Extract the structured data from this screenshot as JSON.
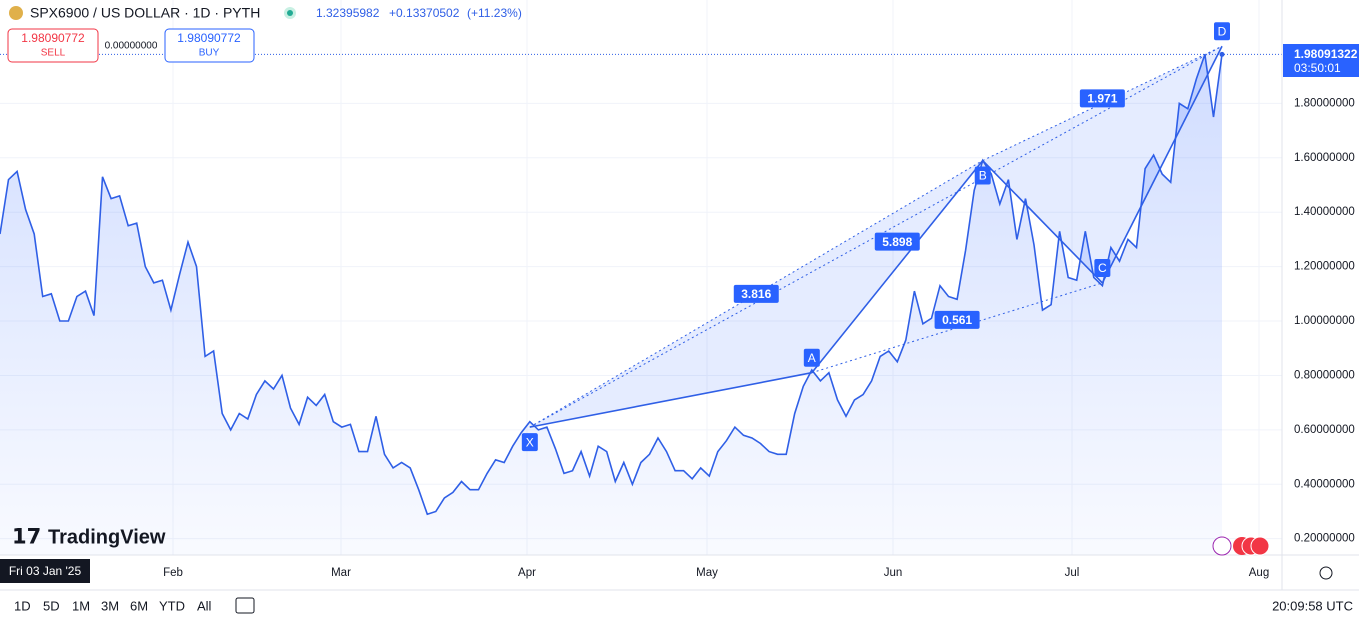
{
  "header": {
    "symbol": "SPX6900 / US DOLLAR · 1D · PYTH",
    "last": "1.32395982",
    "change": "+0.13370502",
    "change_pct": "(+11.23%)"
  },
  "trade": {
    "sell_price": "1.98090772",
    "sell": "SELL",
    "spread": "0.00000000",
    "buy_price": "1.98090772",
    "buy": "BUY"
  },
  "logo": "TradingView",
  "cursor_date": "Fri 03 Jan '25",
  "price_label": {
    "price": "1.98091322",
    "countdown": "03:50:01"
  },
  "ranges": [
    "1D",
    "5D",
    "1M",
    "3M",
    "6M",
    "YTD",
    "All"
  ],
  "clock": "20:09:58 UTC",
  "chart_data": {
    "type": "line",
    "months": [
      "Feb",
      "Mar",
      "Apr",
      "May",
      "Jun",
      "Jul",
      "Aug"
    ],
    "series": [
      {
        "name": "SPX6900 / US DOLLAR",
        "color": "#2f5fe6",
        "values": [
          1.32,
          1.52,
          1.55,
          1.41,
          1.32,
          1.09,
          1.1,
          1.0,
          1.0,
          1.09,
          1.11,
          1.02,
          1.53,
          1.45,
          1.46,
          1.35,
          1.36,
          1.2,
          1.14,
          1.15,
          1.04,
          1.17,
          1.29,
          1.2,
          0.87,
          0.89,
          0.66,
          0.6,
          0.66,
          0.64,
          0.73,
          0.78,
          0.75,
          0.8,
          0.68,
          0.62,
          0.72,
          0.69,
          0.73,
          0.63,
          0.61,
          0.62,
          0.52,
          0.52,
          0.65,
          0.51,
          0.46,
          0.48,
          0.46,
          0.38,
          0.29,
          0.3,
          0.35,
          0.37,
          0.41,
          0.38,
          0.38,
          0.44,
          0.49,
          0.48,
          0.54,
          0.59,
          0.63,
          0.6,
          0.61,
          0.53,
          0.44,
          0.45,
          0.52,
          0.43,
          0.54,
          0.52,
          0.41,
          0.48,
          0.4,
          0.48,
          0.51,
          0.57,
          0.52,
          0.45,
          0.45,
          0.42,
          0.46,
          0.43,
          0.52,
          0.56,
          0.61,
          0.58,
          0.57,
          0.55,
          0.52,
          0.51,
          0.51,
          0.66,
          0.76,
          0.82,
          0.78,
          0.81,
          0.71,
          0.65,
          0.71,
          0.73,
          0.78,
          0.87,
          0.89,
          0.85,
          0.93,
          1.11,
          0.99,
          1.01,
          1.13,
          1.09,
          1.08,
          1.26,
          1.48,
          1.59,
          1.54,
          1.43,
          1.52,
          1.3,
          1.45,
          1.28,
          1.04,
          1.06,
          1.33,
          1.16,
          1.15,
          1.33,
          1.16,
          1.13,
          1.27,
          1.22,
          1.3,
          1.27,
          1.56,
          1.61,
          1.54,
          1.51,
          1.8,
          1.78,
          1.89,
          1.98,
          1.75,
          1.98
        ]
      }
    ],
    "ylim": [
      0.14,
      2.18
    ],
    "yticks": [
      {
        "value": 0.2,
        "label": "0.20000000"
      },
      {
        "value": 0.4,
        "label": "0.40000000"
      },
      {
        "value": 0.6,
        "label": "0.60000000"
      },
      {
        "value": 0.8,
        "label": "0.80000000"
      },
      {
        "value": 1.0,
        "label": "1.00000000"
      },
      {
        "value": 1.2,
        "label": "1.20000000"
      },
      {
        "value": 1.4,
        "label": "1.40000000"
      },
      {
        "value": 1.6,
        "label": "1.60000000"
      },
      {
        "value": 1.8,
        "label": "1.80000000"
      }
    ],
    "grid": true,
    "pattern": {
      "points": [
        {
          "label": "X",
          "value": 0.61
        },
        {
          "label": "A",
          "value": 0.81
        },
        {
          "label": "B",
          "value": 1.59
        },
        {
          "label": "C",
          "value": 1.14
        },
        {
          "label": "D",
          "value": 2.01
        }
      ],
      "ratios": [
        3.816,
        5.898,
        0.561,
        1.971
      ]
    }
  }
}
